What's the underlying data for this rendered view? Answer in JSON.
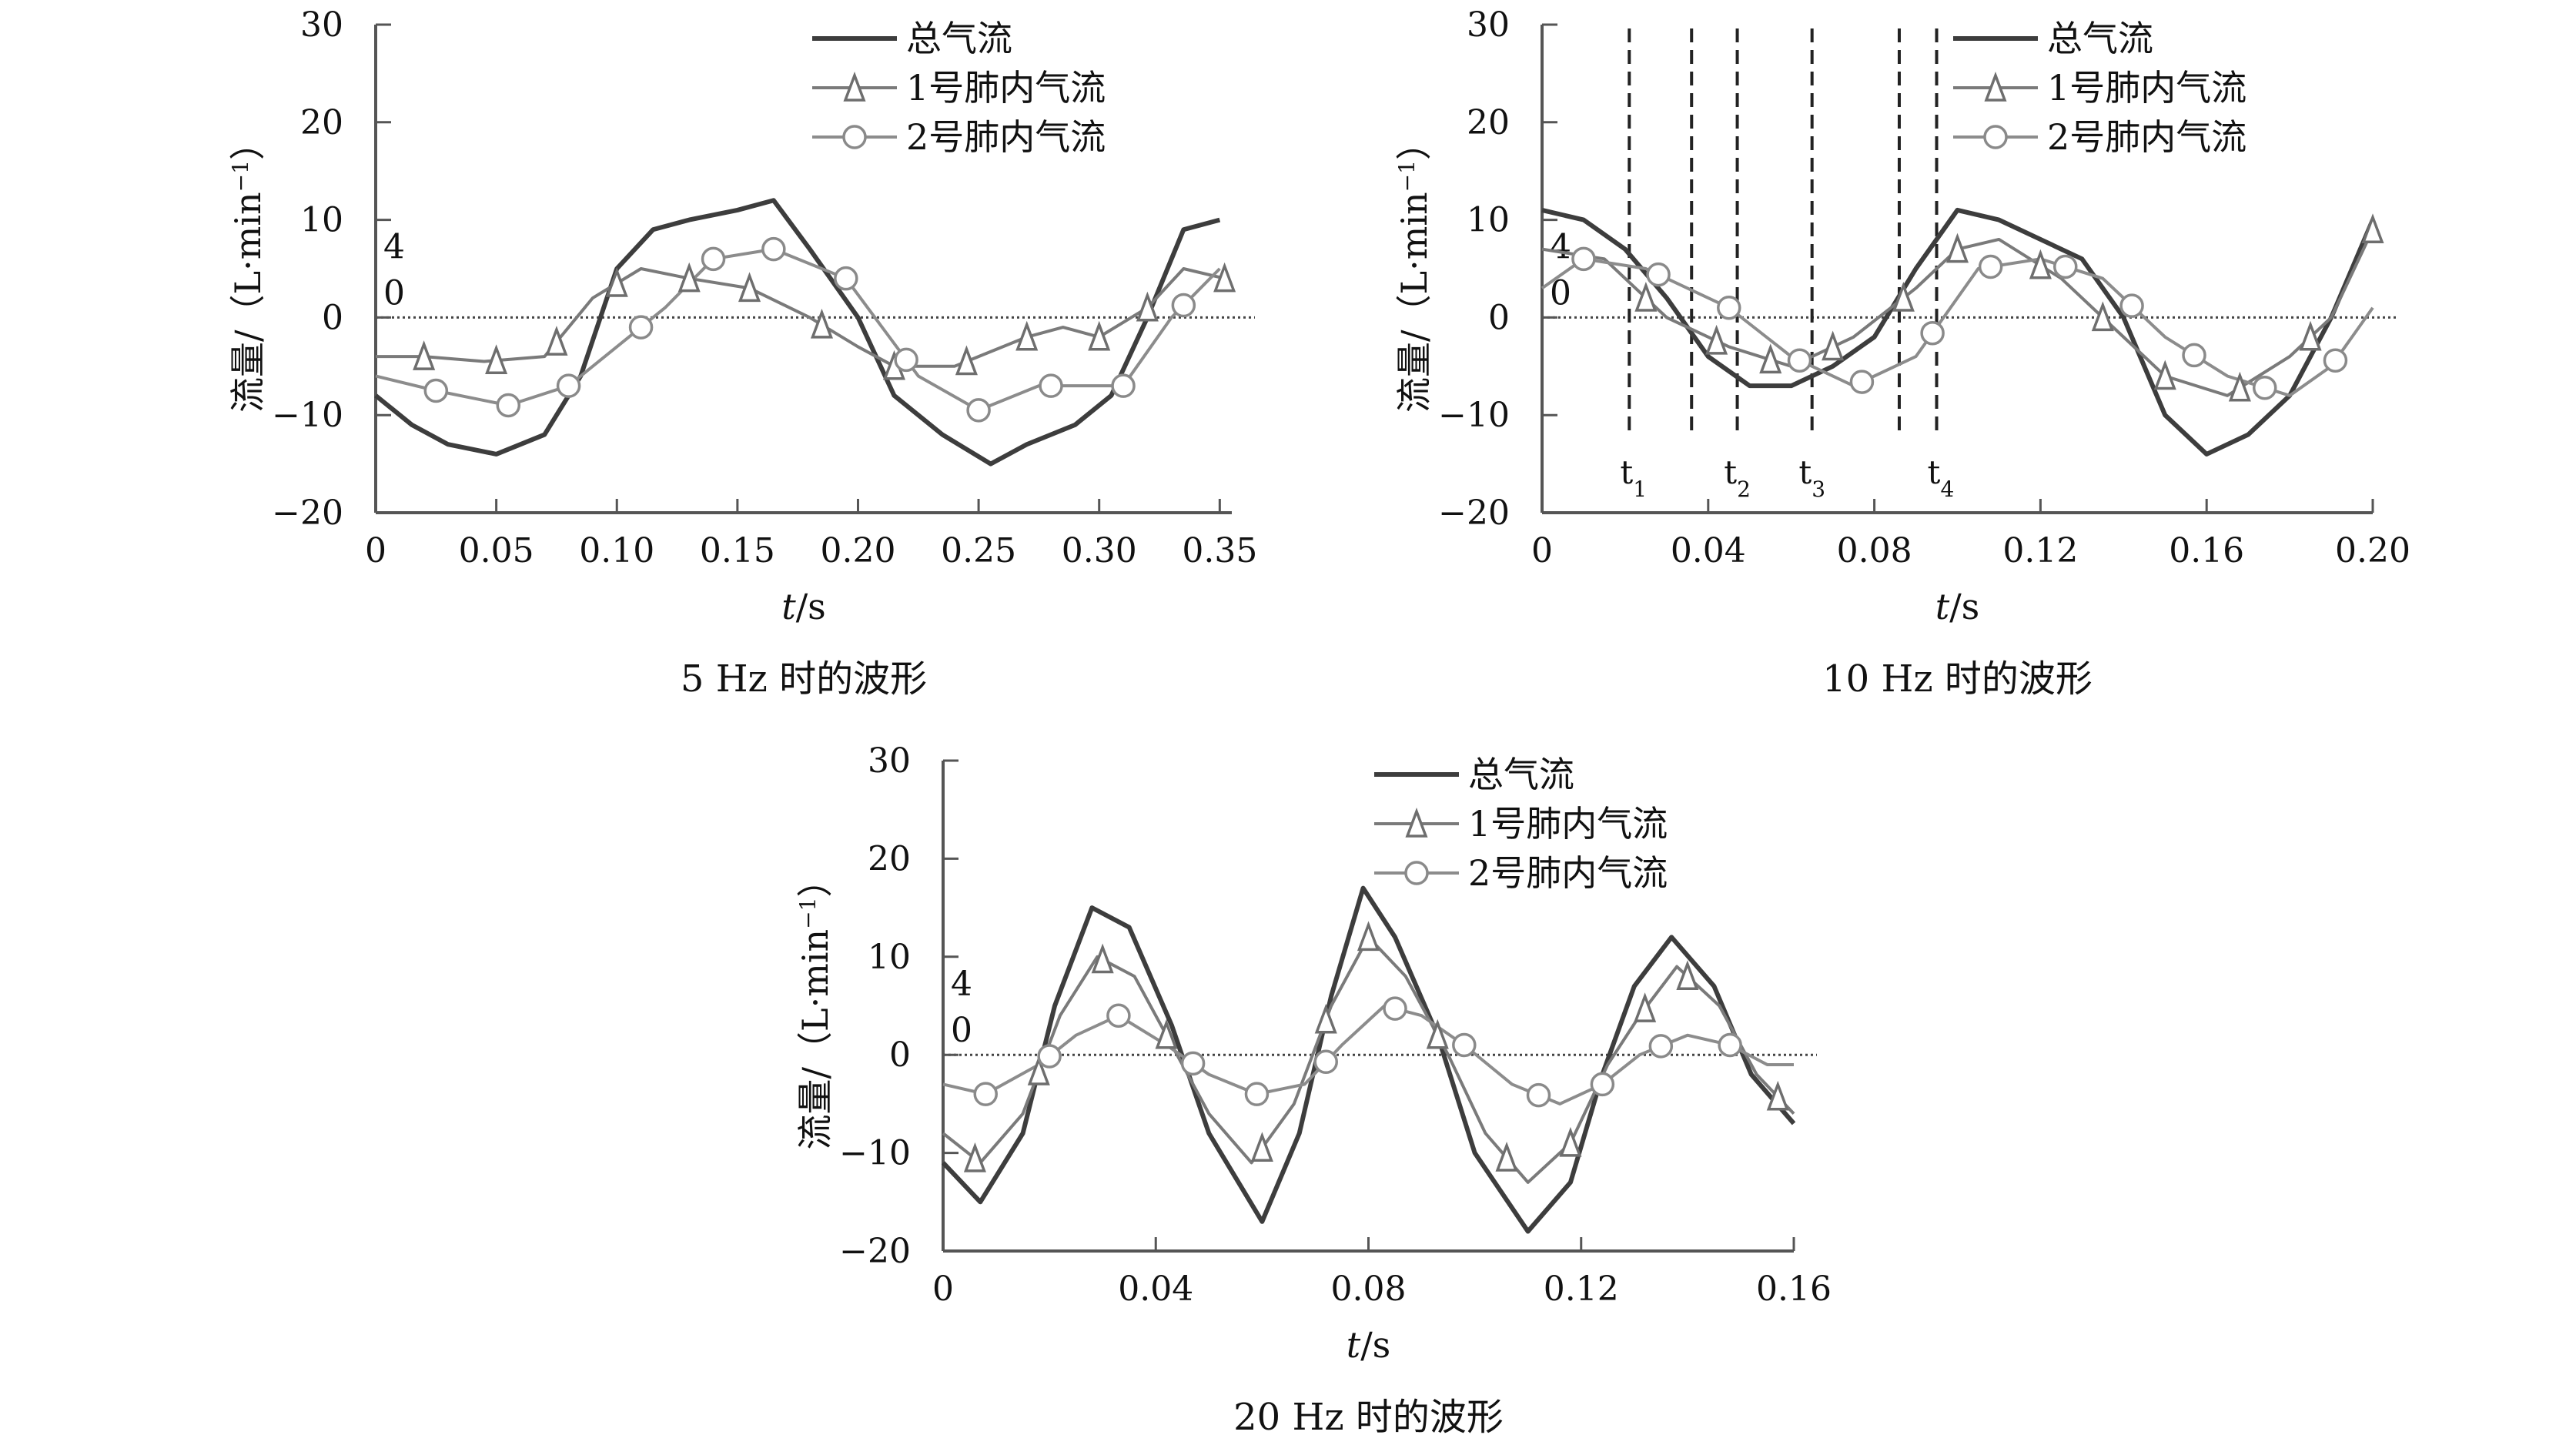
{
  "chart_data": [
    {
      "type": "line",
      "caption": "5 Hz 时的波形",
      "xlabel_var": "t",
      "xlabel_unit": "/s",
      "ylabel": "流量/（L·min",
      "ylabel_sup": "−1",
      "ylabel_close": "）",
      "xlim": [
        0,
        0.355
      ],
      "ylim": [
        -20,
        30
      ],
      "xticks": [
        "0",
        "0.05",
        "0.10",
        "0.15",
        "0.20",
        "0.25",
        "0.30",
        "0.35"
      ],
      "xtick_values": [
        0,
        0.05,
        0.1,
        0.15,
        0.2,
        0.25,
        0.3,
        0.35
      ],
      "yticks": [
        "30",
        "20",
        "10",
        "0",
        "−10",
        "−20"
      ],
      "ytick_values": [
        30,
        20,
        10,
        0,
        -10,
        -20
      ],
      "stray_labels": [
        "4",
        "0"
      ],
      "legend": [
        "总气流",
        "1号肺内气流",
        "2号肺内气流"
      ],
      "series": [
        {
          "name": "总气流",
          "marker": "none",
          "x": [
            0,
            0.015,
            0.03,
            0.05,
            0.07,
            0.085,
            0.1,
            0.115,
            0.13,
            0.15,
            0.165,
            0.18,
            0.2,
            0.215,
            0.235,
            0.255,
            0.27,
            0.29,
            0.305,
            0.32,
            0.335,
            0.35
          ],
          "y": [
            -8,
            -11,
            -13,
            -14,
            -12,
            -6,
            5,
            9,
            10,
            11,
            12,
            7,
            0,
            -8,
            -12,
            -15,
            -13,
            -11,
            -8,
            0,
            9,
            10
          ]
        },
        {
          "name": "1号肺内气流",
          "marker": "triangle",
          "x": [
            0,
            0.02,
            0.045,
            0.07,
            0.09,
            0.11,
            0.13,
            0.155,
            0.18,
            0.2,
            0.215,
            0.24,
            0.27,
            0.285,
            0.3,
            0.32,
            0.335,
            0.352
          ],
          "y": [
            -4,
            -4,
            -4.5,
            -4,
            2,
            5,
            4,
            3,
            0,
            -3,
            -5,
            -5,
            -2,
            -1,
            -2,
            1,
            5,
            4
          ]
        },
        {
          "name": "2号肺内气流",
          "marker": "circle",
          "x": [
            0,
            0.025,
            0.055,
            0.08,
            0.1,
            0.12,
            0.14,
            0.165,
            0.195,
            0.225,
            0.25,
            0.275,
            0.31,
            0.33,
            0.35
          ],
          "y": [
            -6,
            -7.5,
            -9,
            -7,
            -3,
            1,
            6,
            7,
            4,
            -6,
            -9.5,
            -7,
            -7,
            0,
            5
          ]
        }
      ],
      "markers": {
        "1号肺内气流": [
          0.02,
          0.05,
          0.075,
          0.1,
          0.13,
          0.155,
          0.185,
          0.215,
          0.245,
          0.27,
          0.3,
          0.32,
          0.352
        ],
        "2号肺内气流": [
          0.025,
          0.055,
          0.08,
          0.11,
          0.14,
          0.165,
          0.195,
          0.22,
          0.25,
          0.28,
          0.31,
          0.335
        ]
      },
      "vlines": [],
      "vline_labels": []
    },
    {
      "type": "line",
      "caption": "10 Hz 时的波形",
      "xlabel_var": "t",
      "xlabel_unit": "/s",
      "ylabel": "流量/（L·min",
      "ylabel_sup": "−1",
      "ylabel_close": "）",
      "xlim": [
        0,
        0.2
      ],
      "ylim": [
        -20,
        30
      ],
      "xticks": [
        "0",
        "0.04",
        "0.08",
        "0.12",
        "0.16",
        "0.20"
      ],
      "xtick_values": [
        0,
        0.04,
        0.08,
        0.12,
        0.16,
        0.2
      ],
      "yticks": [
        "30",
        "20",
        "10",
        "0",
        "−10",
        "−20"
      ],
      "ytick_values": [
        30,
        20,
        10,
        0,
        -10,
        -20
      ],
      "stray_labels": [
        "4",
        "0"
      ],
      "legend": [
        "总气流",
        "1号肺内气流",
        "2号肺内气流"
      ],
      "series": [
        {
          "name": "总气流",
          "marker": "none",
          "x": [
            0,
            0.01,
            0.02,
            0.03,
            0.04,
            0.05,
            0.06,
            0.07,
            0.08,
            0.09,
            0.1,
            0.11,
            0.12,
            0.13,
            0.14,
            0.15,
            0.16,
            0.17,
            0.18,
            0.19,
            0.2
          ],
          "y": [
            11,
            10,
            7,
            2,
            -4,
            -7,
            -7,
            -5,
            -2,
            5,
            11,
            10,
            8,
            6,
            0,
            -10,
            -14,
            -12,
            -8,
            0,
            10
          ]
        },
        {
          "name": "1号肺内气流",
          "marker": "triangle",
          "x": [
            0,
            0.015,
            0.03,
            0.045,
            0.06,
            0.075,
            0.09,
            0.1,
            0.11,
            0.125,
            0.14,
            0.15,
            0.165,
            0.18,
            0.19,
            0.2
          ],
          "y": [
            7,
            6,
            0,
            -3,
            -5,
            -2,
            3,
            7,
            8,
            4,
            -2,
            -6,
            -8,
            -4,
            0,
            9
          ]
        },
        {
          "name": "2号肺内气流",
          "marker": "circle",
          "x": [
            0,
            0.01,
            0.025,
            0.045,
            0.06,
            0.075,
            0.09,
            0.105,
            0.12,
            0.135,
            0.15,
            0.165,
            0.18,
            0.19,
            0.2
          ],
          "y": [
            3,
            6,
            5,
            1,
            -4,
            -7,
            -4,
            5,
            6,
            4,
            -2,
            -6,
            -8,
            -5,
            1
          ]
        }
      ],
      "markers": {
        "1号肺内气流": [
          0.025,
          0.042,
          0.055,
          0.07,
          0.087,
          0.1,
          0.12,
          0.135,
          0.15,
          0.168,
          0.185,
          0.2
        ],
        "2号肺内气流": [
          0.01,
          0.028,
          0.045,
          0.062,
          0.077,
          0.094,
          0.108,
          0.126,
          0.142,
          0.157,
          0.174,
          0.191
        ]
      },
      "vlines": [
        0.021,
        0.036,
        0.047,
        0.065,
        0.086,
        0.095
      ],
      "vline_labels": [
        {
          "base": "t",
          "sub": "1",
          "x": 0.022
        },
        {
          "base": "t",
          "sub": "2",
          "x": 0.047
        },
        {
          "base": "t",
          "sub": "3",
          "x": 0.065
        },
        {
          "base": "t",
          "sub": "4",
          "x": 0.096
        }
      ]
    },
    {
      "type": "line",
      "caption": "20 Hz 时的波形",
      "xlabel_var": "t",
      "xlabel_unit": "/s",
      "ylabel": "流量/（L·min",
      "ylabel_sup": "−1",
      "ylabel_close": "）",
      "xlim": [
        0,
        0.16
      ],
      "ylim": [
        -20,
        30
      ],
      "xticks": [
        "0",
        "0.04",
        "0.08",
        "0.12",
        "0.16"
      ],
      "xtick_values": [
        0,
        0.04,
        0.08,
        0.12,
        0.16
      ],
      "yticks": [
        "30",
        "20",
        "10",
        "0",
        "−10",
        "−20"
      ],
      "ytick_values": [
        30,
        20,
        10,
        0,
        -10,
        -20
      ],
      "stray_labels": [
        "4",
        "0"
      ],
      "legend": [
        "总气流",
        "1号肺内气流",
        "2号肺内气流"
      ],
      "series": [
        {
          "name": "总气流",
          "marker": "none",
          "x": [
            0,
            0.007,
            0.015,
            0.021,
            0.028,
            0.035,
            0.043,
            0.05,
            0.06,
            0.067,
            0.073,
            0.079,
            0.085,
            0.093,
            0.1,
            0.11,
            0.118,
            0.124,
            0.13,
            0.137,
            0.145,
            0.152,
            0.16
          ],
          "y": [
            -11,
            -15,
            -8,
            5,
            15,
            13,
            3,
            -8,
            -17,
            -8,
            6,
            17,
            12,
            2,
            -10,
            -18,
            -13,
            -2,
            7,
            12,
            7,
            -2,
            -7
          ]
        },
        {
          "name": "1号肺内气流",
          "marker": "triangle",
          "x": [
            0,
            0.007,
            0.015,
            0.022,
            0.029,
            0.036,
            0.043,
            0.05,
            0.058,
            0.066,
            0.073,
            0.08,
            0.087,
            0.095,
            0.102,
            0.11,
            0.118,
            0.125,
            0.131,
            0.138,
            0.146,
            0.153,
            0.16
          ],
          "y": [
            -8,
            -11,
            -6,
            4,
            10,
            8,
            1,
            -6,
            -11,
            -5,
            5,
            12,
            8,
            0,
            -8,
            -13,
            -9,
            -1,
            4,
            9,
            5,
            -2,
            -6
          ]
        },
        {
          "name": "2号肺内气流",
          "marker": "circle",
          "x": [
            0,
            0.008,
            0.018,
            0.025,
            0.033,
            0.042,
            0.05,
            0.059,
            0.068,
            0.075,
            0.083,
            0.09,
            0.098,
            0.107,
            0.116,
            0.124,
            0.131,
            0.14,
            0.148,
            0.155,
            0.16
          ],
          "y": [
            -3,
            -4,
            -1,
            2,
            4,
            1,
            -2,
            -4,
            -3,
            1,
            5,
            4,
            1,
            -3,
            -5,
            -3,
            0,
            2,
            1,
            -1,
            -1
          ]
        }
      ],
      "markers": {
        "1号肺内气流": [
          0.006,
          0.018,
          0.03,
          0.042,
          0.06,
          0.072,
          0.08,
          0.093,
          0.106,
          0.118,
          0.132,
          0.14,
          0.157
        ],
        "2号肺内气流": [
          0.008,
          0.02,
          0.033,
          0.047,
          0.059,
          0.072,
          0.085,
          0.098,
          0.112,
          0.124,
          0.135,
          0.148
        ]
      },
      "vlines": [],
      "vline_labels": []
    }
  ]
}
